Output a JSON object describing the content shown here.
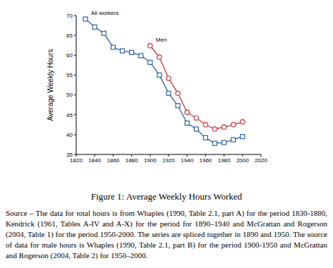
{
  "chart_data": {
    "type": "line",
    "caption": "Figure 1: Average Weekly Hours Worked",
    "source": "Source – The data for total hours is from Whaples (1990, Table 2.1, part A) for the period 1830-1880, Kendrick (1961, Tables A-IV and A-X) for the period for 1890–1940 and McGrattan and Rogerson (2004, Table 1) for the period 1950-2000. The series are spliced together in 1890 and 1950. The source of data for male hours is Whaples (1990, Table 2.1, part B) for the period 1900-1950 and McGrattan and Rogerson (2004, Table 2) for 1950–2000.",
    "y_label": "Average Weekly Hours",
    "x": [
      1830,
      1840,
      1850,
      1860,
      1870,
      1880,
      1890,
      1900,
      1910,
      1920,
      1930,
      1940,
      1950,
      1960,
      1970,
      1980,
      1990,
      2000
    ],
    "series": [
      {
        "name": "All workers",
        "color": "#2a5fb0",
        "marker": "square",
        "values": [
          69.1,
          67.1,
          65.5,
          62.0,
          61.1,
          60.7,
          59.9,
          58.2,
          55.0,
          50.4,
          47.3,
          42.9,
          41.4,
          39.2,
          37.8,
          38.0,
          38.7,
          39.5
        ]
      },
      {
        "name": "Men",
        "color": "#c8323c",
        "marker": "circle",
        "values": [
          null,
          null,
          null,
          null,
          null,
          null,
          null,
          62.4,
          59.5,
          54.2,
          50.4,
          45.6,
          44.2,
          42.5,
          41.4,
          41.9,
          42.5,
          43.2
        ]
      }
    ],
    "xlim": [
      1820,
      2020
    ],
    "xticks": [
      1820,
      1840,
      1860,
      1880,
      1900,
      1920,
      1940,
      1960,
      1980,
      2000,
      2020
    ],
    "ylim": [
      35,
      70
    ],
    "yticks": [
      35,
      40,
      45,
      50,
      55,
      60,
      65,
      70
    ],
    "grid": false,
    "legend": false
  }
}
